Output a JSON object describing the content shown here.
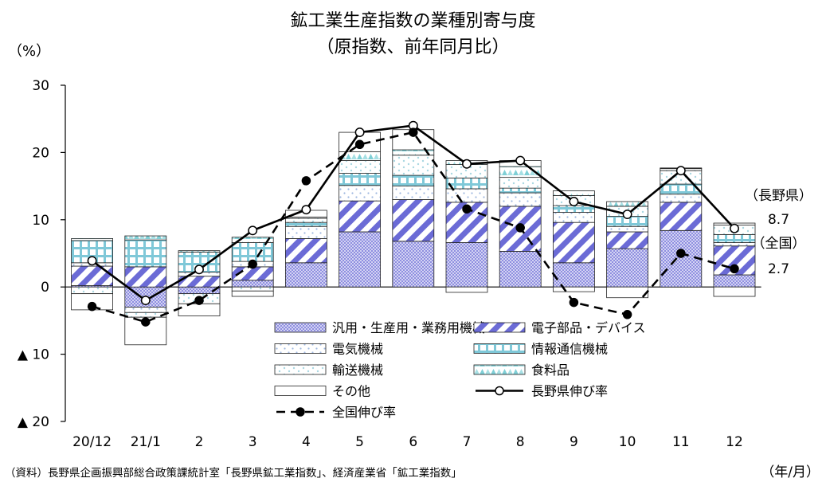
{
  "title_line1": "鉱工業生産指数の業種別寄与度",
  "title_line2": "（原指数、前年同月比）",
  "y_unit": "（%）",
  "x_unit": "（年/月）",
  "source": "（資料）長野県企画振興部総合政策課統計室「長野県鉱工業指数」、経済産業省「鉱工業指数」",
  "side_labels": {
    "nagano_label": "（長野県）",
    "nagano_value": "8.7",
    "zenkoku_label": "（全国）",
    "zenkoku_value": "2.7"
  },
  "colors": {
    "machinery": "#a7a7e6",
    "electronic": "#6b6bd6",
    "electric": "#c9d9ef",
    "info": "#7fc8d8",
    "transport": "#bfe3ea",
    "food": "#7fcfd6",
    "other": "#ffffff",
    "line": "#000000"
  },
  "chart_data": {
    "type": "bar",
    "title": "鉱工業生産指数の業種別寄与度（原指数、前年同月比）",
    "ylabel": "（%）",
    "xlabel": "（年/月）",
    "ylim": [
      -20,
      30
    ],
    "yticks": [
      30,
      20,
      10,
      0,
      -10,
      -20
    ],
    "ytick_labels": [
      "30",
      "20",
      "10",
      "0",
      "▲ 10",
      "▲ 20"
    ],
    "categories": [
      "20/12",
      "21/1",
      "2",
      "3",
      "4",
      "5",
      "6",
      "7",
      "8",
      "9",
      "10",
      "11",
      "12"
    ],
    "stacked_series": [
      {
        "name": "汎用・生産用・業務用機械",
        "key": "machinery",
        "values": [
          0.2,
          -3.0,
          -1.0,
          1.0,
          3.6,
          8.2,
          6.8,
          6.6,
          5.3,
          3.6,
          5.7,
          8.4,
          1.8
        ]
      },
      {
        "name": "電子部品・デバイス",
        "key": "electronic",
        "values": [
          2.9,
          3.0,
          1.6,
          2.0,
          3.6,
          4.6,
          6.2,
          6.0,
          6.7,
          6.0,
          2.5,
          4.2,
          4.3
        ]
      },
      {
        "name": "電気機械",
        "key": "electric",
        "values": [
          0.5,
          -0.8,
          0.6,
          0.8,
          1.8,
          2.3,
          2.0,
          2.0,
          2.0,
          1.5,
          0.8,
          1.2,
          0.5
        ]
      },
      {
        "name": "情報通信機械",
        "key": "info",
        "values": [
          3.3,
          4.0,
          3.0,
          2.8,
          0.6,
          1.8,
          1.6,
          1.6,
          0.7,
          1.0,
          1.5,
          1.5,
          1.2
        ]
      },
      {
        "name": "輸送機械",
        "key": "transport",
        "values": [
          -1.0,
          -0.7,
          -1.5,
          -0.6,
          0.6,
          1.9,
          3.0,
          2.0,
          1.6,
          1.5,
          1.5,
          2.0,
          1.4
        ]
      },
      {
        "name": "食料品",
        "key": "food",
        "values": [
          0.3,
          0.6,
          0.2,
          0.8,
          0.2,
          1.3,
          0.8,
          0.6,
          1.6,
          0.7,
          0.7,
          0.3,
          0.3
        ]
      },
      {
        "name": "その他",
        "key": "other",
        "values": [
          -2.4,
          -4.1,
          -1.8,
          -0.8,
          1.0,
          2.9,
          3.0,
          -0.8,
          0.9,
          -0.7,
          -1.6,
          0.1,
          -1.4
        ]
      }
    ],
    "line_series": [
      {
        "name": "長野県伸び率",
        "key": "nagano",
        "values": [
          3.9,
          -2.0,
          2.6,
          8.4,
          11.5,
          23.0,
          24.0,
          18.3,
          18.8,
          12.7,
          10.8,
          17.3,
          8.7
        ]
      },
      {
        "name": "全国伸び率",
        "key": "zenkoku",
        "values": [
          -2.9,
          -5.2,
          -2.0,
          3.4,
          15.8,
          21.2,
          23.0,
          11.6,
          8.8,
          -2.3,
          -4.1,
          5.0,
          2.7
        ]
      }
    ],
    "legend_position": "bottom-center"
  }
}
